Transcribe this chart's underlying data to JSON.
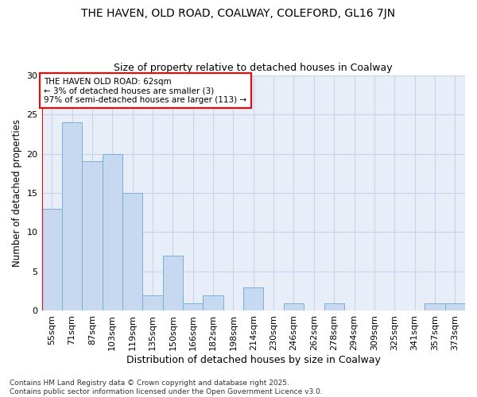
{
  "title": "THE HAVEN, OLD ROAD, COALWAY, COLEFORD, GL16 7JN",
  "subtitle": "Size of property relative to detached houses in Coalway",
  "xlabel": "Distribution of detached houses by size in Coalway",
  "ylabel": "Number of detached properties",
  "categories": [
    "55sqm",
    "71sqm",
    "87sqm",
    "103sqm",
    "119sqm",
    "135sqm",
    "150sqm",
    "166sqm",
    "182sqm",
    "198sqm",
    "214sqm",
    "230sqm",
    "246sqm",
    "262sqm",
    "278sqm",
    "294sqm",
    "309sqm",
    "325sqm",
    "341sqm",
    "357sqm",
    "373sqm"
  ],
  "values": [
    13,
    24,
    19,
    20,
    15,
    2,
    7,
    1,
    2,
    0,
    3,
    0,
    1,
    0,
    1,
    0,
    0,
    0,
    0,
    1,
    1
  ],
  "bar_color": "#c6d9f0",
  "bar_edge_color": "#7bafd4",
  "annotation_box_text": "THE HAVEN OLD ROAD: 62sqm\n← 3% of detached houses are smaller (3)\n97% of semi-detached houses are larger (113) →",
  "ylim": [
    0,
    30
  ],
  "yticks": [
    0,
    5,
    10,
    15,
    20,
    25,
    30
  ],
  "grid_color": "#c8d4e8",
  "background_color": "#e8eef8",
  "footnote": "Contains HM Land Registry data © Crown copyright and database right 2025.\nContains public sector information licensed under the Open Government Licence v3.0.",
  "title_fontsize": 10,
  "subtitle_fontsize": 9,
  "xlabel_fontsize": 9,
  "ylabel_fontsize": 8.5,
  "tick_fontsize": 8,
  "annot_fontsize": 7.5,
  "footnote_fontsize": 6.5
}
